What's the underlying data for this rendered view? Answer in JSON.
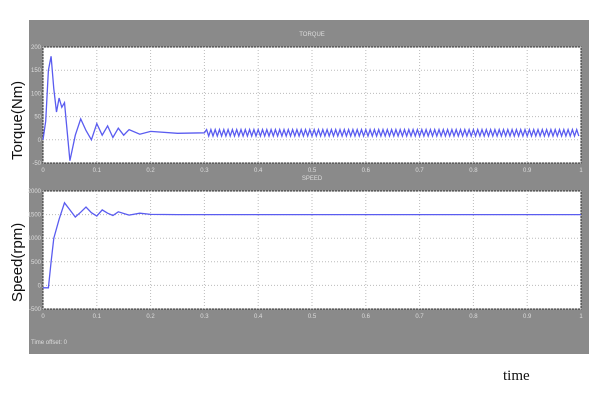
{
  "chart_data": [
    {
      "type": "line",
      "title": "TORQUE",
      "ylabel": "Torque(Nm)",
      "xlim": [
        0,
        1
      ],
      "ylim": [
        -50,
        200
      ],
      "xticks": [
        "0",
        "0.1",
        "0.2",
        "0.3",
        "0.4",
        "0.5",
        "0.6",
        "0.7",
        "0.8",
        "0.9",
        "1"
      ],
      "yticks": [
        "-50",
        "0",
        "50",
        "100",
        "150",
        "200"
      ],
      "grid": true,
      "color": "#5a5cf0",
      "x": [
        0,
        0.005,
        0.01,
        0.015,
        0.02,
        0.025,
        0.03,
        0.035,
        0.04,
        0.05,
        0.06,
        0.07,
        0.08,
        0.09,
        0.1,
        0.11,
        0.12,
        0.13,
        0.14,
        0.15,
        0.16,
        0.18,
        0.2,
        0.25,
        0.3,
        1.0
      ],
      "y": [
        0,
        40,
        150,
        180,
        110,
        60,
        90,
        70,
        80,
        -45,
        10,
        45,
        20,
        0,
        35,
        10,
        30,
        5,
        25,
        10,
        22,
        12,
        18,
        14,
        15,
        15
      ],
      "ripple": 7
    },
    {
      "type": "line",
      "title": "SPEED",
      "ylabel": "Speed(rpm)",
      "xlabel": "time",
      "xlim": [
        0,
        1
      ],
      "ylim": [
        -500,
        2000
      ],
      "xticks": [
        "0",
        "0.1",
        "0.2",
        "0.3",
        "0.4",
        "0.5",
        "0.6",
        "0.7",
        "0.8",
        "0.9",
        "1"
      ],
      "yticks": [
        "-500",
        "0",
        "500",
        "1000",
        "1500",
        "2000"
      ],
      "grid": true,
      "color": "#5a5cf0",
      "x": [
        0,
        0.01,
        0.015,
        0.02,
        0.03,
        0.04,
        0.05,
        0.06,
        0.07,
        0.08,
        0.09,
        0.1,
        0.11,
        0.12,
        0.13,
        0.14,
        0.16,
        0.18,
        0.2,
        0.25,
        1.0
      ],
      "y": [
        -50,
        -50,
        500,
        1000,
        1400,
        1750,
        1600,
        1450,
        1550,
        1660,
        1540,
        1470,
        1600,
        1530,
        1480,
        1560,
        1490,
        1530,
        1505,
        1500,
        1500
      ]
    }
  ],
  "footer": {
    "time_offset": "Time offset:  0"
  }
}
